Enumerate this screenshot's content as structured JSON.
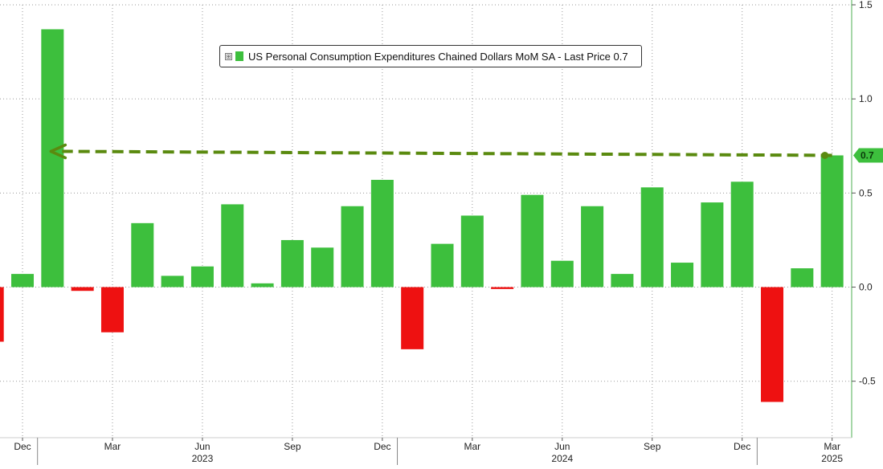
{
  "chart_data": {
    "type": "bar",
    "legend": {
      "toggle": "⊞",
      "label": "US Personal Consumption Expenditures Chained Dollars MoM SA - Last Price 0.7",
      "placement": "top-center"
    },
    "categories": [
      "2022-11",
      "2022-12",
      "2023-01",
      "2023-02",
      "2023-03",
      "2023-04",
      "2023-05",
      "2023-06",
      "2023-07",
      "2023-08",
      "2023-09",
      "2023-10",
      "2023-11",
      "2023-12",
      "2024-01",
      "2024-02",
      "2024-03",
      "2024-04",
      "2024-05",
      "2024-06",
      "2024-07",
      "2024-08",
      "2024-09",
      "2024-10",
      "2024-11",
      "2024-12",
      "2025-01",
      "2025-02",
      "2025-03"
    ],
    "values": [
      -0.29,
      0.07,
      1.37,
      -0.02,
      -0.24,
      0.34,
      0.06,
      0.11,
      0.44,
      0.02,
      0.25,
      0.21,
      0.43,
      0.57,
      -0.33,
      0.23,
      0.38,
      -0.01,
      0.49,
      0.14,
      0.43,
      0.07,
      0.53,
      0.13,
      0.45,
      0.56,
      -0.61,
      0.1,
      0.7
    ],
    "ylim": [
      -0.8,
      1.5
    ],
    "yticks": [
      {
        "value": 1.5,
        "label": "1.5"
      },
      {
        "value": 1.0,
        "label": "1.0"
      },
      {
        "value": 0.5,
        "label": "0.5"
      },
      {
        "value": 0.0,
        "label": "0.0"
      },
      {
        "value": -0.5,
        "label": "-0.5"
      }
    ],
    "xticks": [
      {
        "index": 1,
        "label": "Dec"
      },
      {
        "index": 4,
        "label": "Mar"
      },
      {
        "index": 7,
        "label": "Jun"
      },
      {
        "index": 10,
        "label": "Sep"
      },
      {
        "index": 13,
        "label": "Dec"
      },
      {
        "index": 16,
        "label": "Mar"
      },
      {
        "index": 19,
        "label": "Jun"
      },
      {
        "index": 22,
        "label": "Sep"
      },
      {
        "index": 25,
        "label": "Dec"
      },
      {
        "index": 28,
        "label": "Mar"
      }
    ],
    "years": [
      {
        "index": 7,
        "label": "2023"
      },
      {
        "index": 19,
        "label": "2024"
      },
      {
        "index": 28,
        "label": "2025"
      }
    ],
    "year_dividers": [
      1.5,
      13.5,
      25.5
    ],
    "last_value": {
      "value": 0.7,
      "label": "0.7"
    },
    "annotation": {
      "type": "dashed-arrow",
      "from_index": 28,
      "to_index": 2,
      "value": 0.7
    },
    "grid": true,
    "colors": {
      "positive": "#3dbf3d",
      "negative": "#ee1111",
      "arrow": "#5a8a0f",
      "tag": "#3dbf3d",
      "axis": "#4caf50",
      "grid": "#9a9a9a"
    }
  }
}
